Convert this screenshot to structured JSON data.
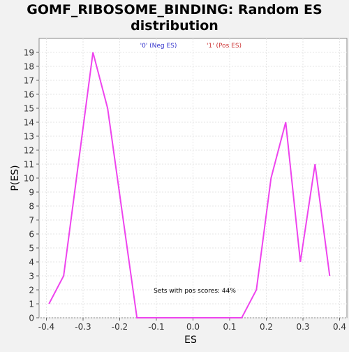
{
  "chart_data": {
    "type": "line",
    "title": "GOMF_RIBOSOME_BINDING: Random ES distribution",
    "title_lines": [
      "GOMF_RIBOSOME_BINDING: Random ES",
      "distribution"
    ],
    "xlabel": "ES",
    "ylabel": "P(ES)",
    "xlim": [
      -0.42,
      0.42
    ],
    "ylim": [
      0,
      20
    ],
    "x_ticks": [
      -0.4,
      -0.3,
      -0.2,
      -0.1,
      0.0,
      0.1,
      0.2,
      0.3,
      0.4
    ],
    "x_tick_labels": [
      "-0.4",
      "-0.3",
      "-0.2",
      "-0.1",
      "0.0",
      "0.1",
      "0.2",
      "0.3",
      "0.4"
    ],
    "y_ticks": [
      0,
      1,
      2,
      3,
      4,
      5,
      6,
      7,
      8,
      9,
      10,
      11,
      12,
      13,
      14,
      15,
      16,
      17,
      18,
      19
    ],
    "y_tick_labels": [
      "0",
      "1",
      "2",
      "3",
      "4",
      "5",
      "6",
      "7",
      "8",
      "9",
      "10",
      "11",
      "12",
      "13",
      "14",
      "15",
      "16",
      "17",
      "18",
      "19"
    ],
    "grid": true,
    "legend_position": "top-center",
    "legend": [
      {
        "label": "'0' (Neg ES)",
        "color": "#3333cc"
      },
      {
        "label": "'1' (Pos ES)",
        "color": "#cc3333"
      }
    ],
    "annotation": "Sets with pos scores: 44%",
    "series": [
      {
        "color": "#ee44ee",
        "x": [
          -0.393,
          -0.353,
          -0.273,
          -0.233,
          -0.153,
          0.133,
          0.173,
          0.213,
          0.253,
          0.293,
          0.333,
          0.373
        ],
        "y": [
          1,
          3,
          19,
          15,
          0,
          0,
          2,
          10,
          14,
          4,
          11,
          3
        ]
      }
    ]
  }
}
